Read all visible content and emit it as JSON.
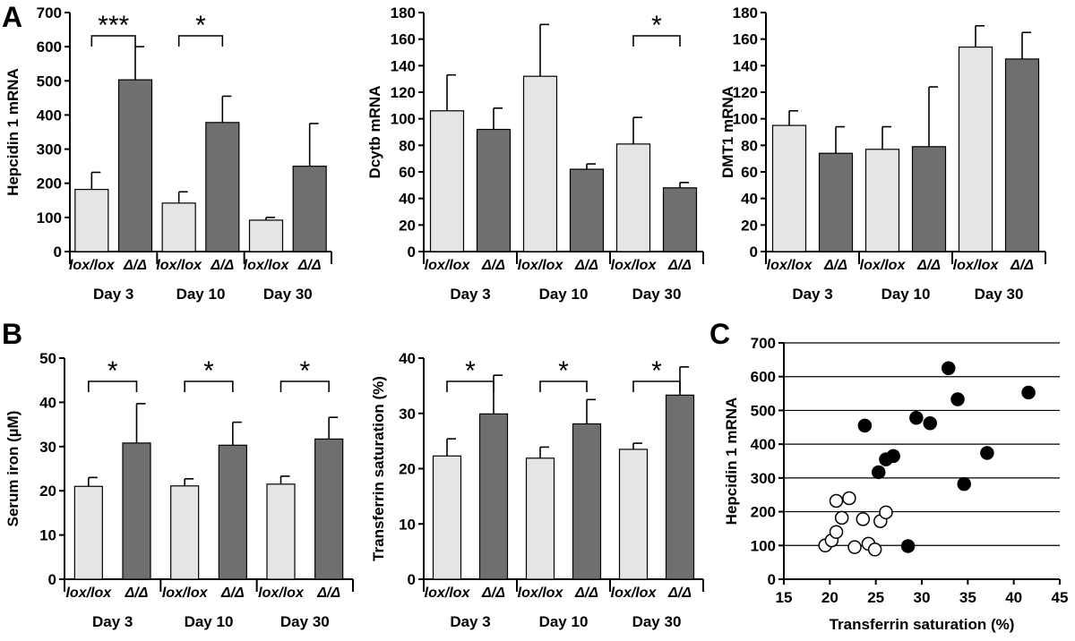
{
  "colors": {
    "lox_fill": "#e5e5e5",
    "delta_fill": "#6f6f6f",
    "outline": "#000000",
    "grid": "#000000"
  },
  "panel_letters": [
    "A",
    "B",
    "C"
  ],
  "chart_data": [
    {
      "id": "hepcidin",
      "panel": "A",
      "type": "bar",
      "ylabel": "Hepcidin 1 mRNA",
      "ylim": [
        0,
        700
      ],
      "yticks": [
        "0",
        "100",
        "200",
        "300",
        "400",
        "500",
        "600",
        "700"
      ],
      "categories": [
        "lox/lox",
        "Δ/Δ",
        "lox/lox",
        "Δ/Δ",
        "lox/lox",
        "Δ/Δ"
      ],
      "groups": [
        "Day 3",
        "Day 10",
        "Day 30"
      ],
      "values": [
        182,
        503,
        142,
        378,
        92,
        250
      ],
      "errors": [
        50,
        97,
        33,
        77,
        8,
        125
      ],
      "significance": [
        {
          "group": 0,
          "label": "***"
        },
        {
          "group": 1,
          "label": "*"
        }
      ]
    },
    {
      "id": "dcytb",
      "type": "bar",
      "ylabel": "Dcytb mRNA",
      "ylim": [
        0,
        180
      ],
      "yticks": [
        "0",
        "20",
        "40",
        "60",
        "80",
        "100",
        "120",
        "140",
        "160",
        "180"
      ],
      "categories": [
        "lox/lox",
        "Δ/Δ",
        "lox/lox",
        "Δ/Δ",
        "lox/lox",
        "Δ/Δ"
      ],
      "groups": [
        "Day 3",
        "Day 10",
        "Day 30"
      ],
      "values": [
        106,
        92,
        132,
        62,
        81,
        48
      ],
      "errors": [
        27,
        16,
        39,
        4,
        20,
        4
      ],
      "significance": [
        {
          "group": 2,
          "label": "*"
        }
      ]
    },
    {
      "id": "dmt1",
      "type": "bar",
      "ylabel": "DMT1 mRNA",
      "ylim": [
        0,
        180
      ],
      "yticks": [
        "0",
        "20",
        "40",
        "60",
        "80",
        "100",
        "120",
        "140",
        "160",
        "180"
      ],
      "categories": [
        "lox/lox",
        "Δ/Δ",
        "lox/lox",
        "Δ/Δ",
        "lox/lox",
        "Δ/Δ"
      ],
      "groups": [
        "Day 3",
        "Day 10",
        "Day 30"
      ],
      "values": [
        95,
        74,
        77,
        79,
        154,
        145
      ],
      "errors": [
        11,
        20,
        17,
        45,
        16,
        20
      ],
      "significance": []
    },
    {
      "id": "serum_iron",
      "panel": "B",
      "type": "bar",
      "ylabel": "Serum iron (µM)",
      "ylim": [
        0,
        50
      ],
      "yticks": [
        "0",
        "10",
        "20",
        "30",
        "40",
        "50"
      ],
      "categories": [
        "lox/lox",
        "Δ/Δ",
        "lox/lox",
        "Δ/Δ",
        "lox/lox",
        "Δ/Δ"
      ],
      "groups": [
        "Day 3",
        "Day 10",
        "Day 30"
      ],
      "values": [
        21,
        30.8,
        21.1,
        30.3,
        21.5,
        31.7
      ],
      "errors": [
        2,
        8.9,
        1.6,
        5.2,
        1.8,
        4.9
      ],
      "significance": [
        {
          "group": 0,
          "label": "*"
        },
        {
          "group": 1,
          "label": "*"
        },
        {
          "group": 2,
          "label": "*"
        }
      ]
    },
    {
      "id": "transferrin_sat",
      "type": "bar",
      "ylabel": "Transferrin saturation (%)",
      "ylim": [
        0,
        40
      ],
      "yticks": [
        "0",
        "10",
        "20",
        "30",
        "40"
      ],
      "categories": [
        "lox/lox",
        "Δ/Δ",
        "lox/lox",
        "Δ/Δ",
        "lox/lox",
        "Δ/Δ"
      ],
      "groups": [
        "Day 3",
        "Day 10",
        "Day 30"
      ],
      "values": [
        22.3,
        29.9,
        21.9,
        28.1,
        23.5,
        33.3
      ],
      "errors": [
        3.1,
        7,
        2,
        4.4,
        1.1,
        5.1
      ],
      "significance": [
        {
          "group": 0,
          "label": "*"
        },
        {
          "group": 1,
          "label": "*"
        },
        {
          "group": 2,
          "label": "*"
        }
      ]
    },
    {
      "id": "scatter",
      "panel": "C",
      "type": "scatter",
      "xlabel": "Transferrin saturation (%)",
      "ylabel": "Hepcidin 1 mRNA",
      "xlim": [
        15,
        45
      ],
      "ylim": [
        0,
        700
      ],
      "xticks": [
        "15",
        "20",
        "25",
        "30",
        "35",
        "40",
        "45"
      ],
      "yticks": [
        "0",
        "100",
        "200",
        "300",
        "400",
        "500",
        "600",
        "700"
      ],
      "grid": "horizontal",
      "series": [
        {
          "marker": "open",
          "points": [
            [
              19.5,
              100
            ],
            [
              20.2,
              115
            ],
            [
              20.7,
              140
            ],
            [
              20.7,
              232
            ],
            [
              21.3,
              182
            ],
            [
              22.1,
              240
            ],
            [
              22.7,
              95
            ],
            [
              23.6,
              178
            ],
            [
              24.2,
              105
            ],
            [
              24.9,
              88
            ],
            [
              25.5,
              172
            ],
            [
              26.1,
              198
            ]
          ]
        },
        {
          "marker": "filled",
          "points": [
            [
              23.8,
              455
            ],
            [
              25.3,
              317
            ],
            [
              26.1,
              355
            ],
            [
              26.9,
              365
            ],
            [
              28.5,
              98
            ],
            [
              29.4,
              478
            ],
            [
              30.9,
              462
            ],
            [
              32.9,
              625
            ],
            [
              33.9,
              533
            ],
            [
              34.6,
              282
            ],
            [
              37.1,
              374
            ],
            [
              41.6,
              553
            ]
          ]
        }
      ]
    }
  ]
}
